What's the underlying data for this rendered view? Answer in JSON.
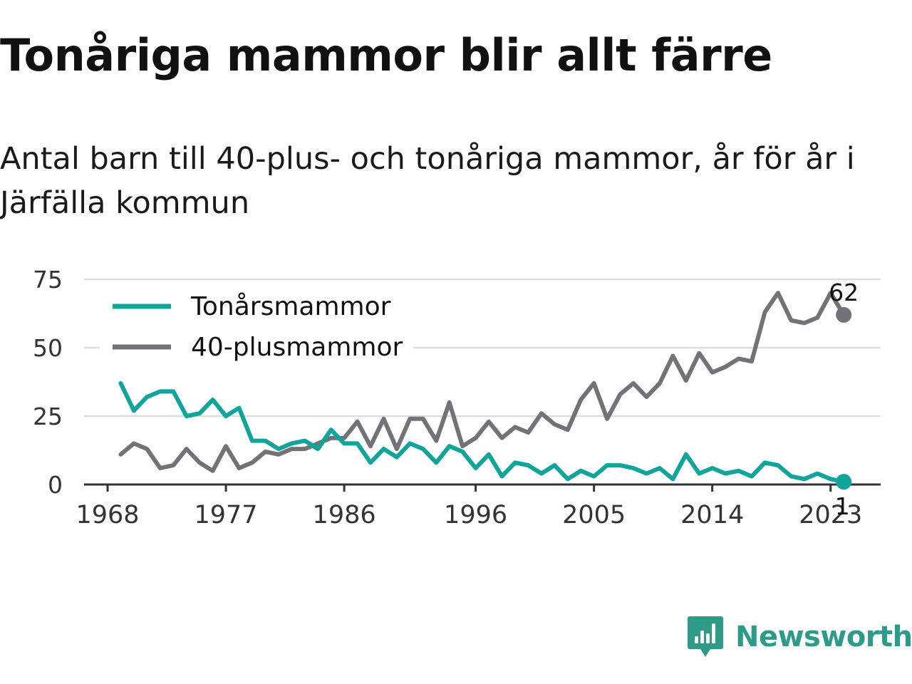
{
  "title": "Tonåriga mammor blir allt färre",
  "subtitle": "Antal barn till 40-plus- och tonåriga mammor, år för år i Järfälla kommun",
  "brand": {
    "name": "Newsworthy",
    "icon": "newsworthy-logo-icon",
    "color": "#2e9b89"
  },
  "colors": {
    "teen": "#0fa59a",
    "forty": "#737278",
    "grid": "#dddddd",
    "axis": "#333333",
    "text": "#111111"
  },
  "chart_data": {
    "type": "line",
    "x": [
      1969,
      1970,
      1971,
      1972,
      1973,
      1974,
      1975,
      1976,
      1977,
      1978,
      1979,
      1980,
      1981,
      1982,
      1983,
      1984,
      1985,
      1986,
      1987,
      1988,
      1989,
      1990,
      1991,
      1992,
      1993,
      1994,
      1995,
      1996,
      1997,
      1998,
      1999,
      2000,
      2001,
      2002,
      2003,
      2004,
      2005,
      2006,
      2007,
      2008,
      2009,
      2010,
      2011,
      2012,
      2013,
      2014,
      2015,
      2016,
      2017,
      2018,
      2019,
      2020,
      2021,
      2022,
      2023,
      2024
    ],
    "series": [
      {
        "name": "Tonårsmammor",
        "color": "#0fa59a",
        "values": [
          37,
          27,
          32,
          34,
          34,
          25,
          26,
          31,
          25,
          28,
          16,
          16,
          13,
          15,
          16,
          13,
          20,
          15,
          15,
          8,
          13,
          10,
          15,
          13,
          8,
          14,
          12,
          6,
          11,
          3,
          8,
          7,
          4,
          7,
          2,
          5,
          3,
          7,
          7,
          6,
          4,
          6,
          2,
          11,
          4,
          6,
          4,
          5,
          3,
          8,
          7,
          3,
          2,
          4,
          2,
          1
        ]
      },
      {
        "name": "40-plusmammor",
        "color": "#737278",
        "values": [
          11,
          15,
          13,
          6,
          7,
          13,
          8,
          5,
          14,
          6,
          8,
          12,
          11,
          13,
          13,
          15,
          17,
          17,
          23,
          14,
          24,
          13,
          24,
          24,
          16,
          30,
          14,
          17,
          23,
          17,
          21,
          19,
          26,
          22,
          20,
          31,
          37,
          24,
          33,
          37,
          32,
          37,
          47,
          38,
          48,
          41,
          43,
          46,
          45,
          63,
          70,
          60,
          59,
          61,
          70,
          62
        ]
      }
    ],
    "end_labels": [
      "62",
      "1"
    ],
    "ylim": [
      0,
      75
    ],
    "yticks": [
      "0",
      "25",
      "50",
      "75"
    ],
    "ytick_values": [
      0,
      25,
      50,
      75
    ],
    "xlim": [
      1968,
      2027
    ],
    "xticks": [
      "1968",
      "1977",
      "1986",
      "1996",
      "2005",
      "2014",
      "2023"
    ],
    "xtick_values": [
      1968,
      1977,
      1986,
      1996,
      2005,
      2014,
      2023
    ],
    "grid": true,
    "legend": {
      "placement": "top-left",
      "entries": [
        "Tonårsmammor",
        "40-plusmammor"
      ]
    },
    "xlabel": "",
    "ylabel": ""
  }
}
